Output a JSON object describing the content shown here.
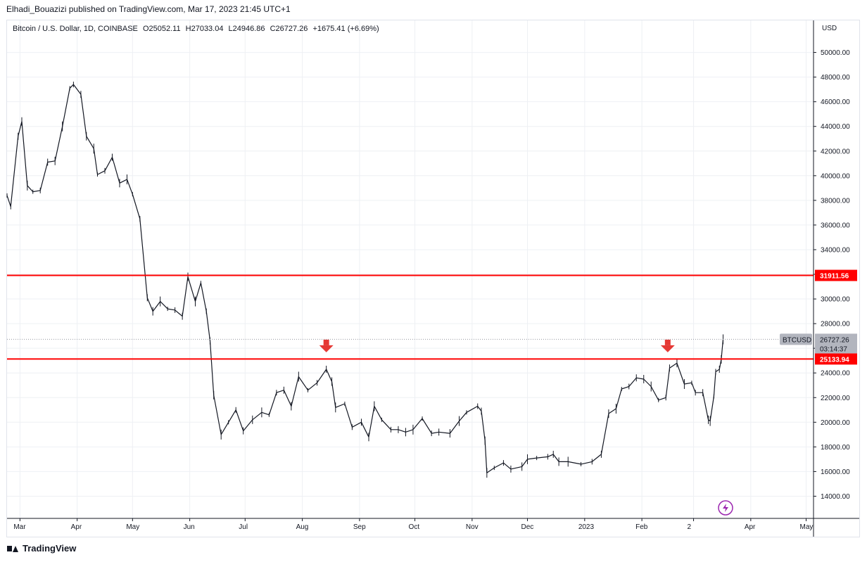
{
  "header": {
    "publisher_text": "Elhadi_Bouazizi published on TradingView.com, Mar 17, 2023 21:45 UTC+1"
  },
  "legend": {
    "symbol": "Bitcoin / U.S. Dollar, 1D, COINBASE",
    "open": "O25052.11",
    "high": "H27033.04",
    "low": "L24946.86",
    "close": "C26727.26",
    "change": "+1675.41 (+6.69%)"
  },
  "footer": {
    "brand": "TradingView"
  },
  "colors": {
    "candle": "#131722",
    "level_line": "#ff0000",
    "arrow": "#e53935",
    "grid": "#eef0f4",
    "axis_label_bg": "#b2b5be",
    "level_label_bg": "#ff0000"
  },
  "chart_data": {
    "type": "line",
    "title": "Bitcoin / U.S. Dollar, 1D, COINBASE",
    "xlabel": "",
    "ylabel": "USD",
    "currency_label": "USD",
    "ylim": [
      12200,
      52600
    ],
    "yticks": [
      "14000.00",
      "16000.00",
      "18000.00",
      "20000.00",
      "22000.00",
      "24000.00",
      "26000.00",
      "28000.00",
      "30000.00",
      "32000.00",
      "34000.00",
      "36000.00",
      "38000.00",
      "40000.00",
      "42000.00",
      "44000.00",
      "46000.00",
      "48000.00",
      "50000.00"
    ],
    "xticks": [
      {
        "label": "Mar",
        "date": "2022-03-01"
      },
      {
        "label": "Apr",
        "date": "2022-04-01"
      },
      {
        "label": "May",
        "date": "2022-05-01"
      },
      {
        "label": "Jun",
        "date": "2022-06-01"
      },
      {
        "label": "Jul",
        "date": "2022-07-01"
      },
      {
        "label": "Aug",
        "date": "2022-08-01"
      },
      {
        "label": "Sep",
        "date": "2022-09-01"
      },
      {
        "label": "Oct",
        "date": "2022-10-01"
      },
      {
        "label": "Nov",
        "date": "2022-11-01"
      },
      {
        "label": "Dec",
        "date": "2022-12-01"
      },
      {
        "label": "2023",
        "date": "2023-01-01"
      },
      {
        "label": "Feb",
        "date": "2023-02-01"
      },
      {
        "label": "2",
        "date": "2023-03-01"
      },
      {
        "label": "Apr",
        "date": "2023-04-01"
      },
      {
        "label": "May",
        "date": "2023-05-01"
      }
    ],
    "x_range": [
      "2022-02-22",
      "2023-05-05"
    ],
    "series": [
      {
        "points": [
          [
            "2022-02-22",
            38400
          ],
          [
            "2022-02-24",
            37500
          ],
          [
            "2022-02-28",
            43200
          ],
          [
            "2022-03-02",
            44400
          ],
          [
            "2022-03-05",
            39200
          ],
          [
            "2022-03-08",
            38700
          ],
          [
            "2022-03-12",
            38800
          ],
          [
            "2022-03-16",
            41100
          ],
          [
            "2022-03-20",
            41200
          ],
          [
            "2022-03-24",
            44000
          ],
          [
            "2022-03-28",
            47100
          ],
          [
            "2022-03-30",
            47400
          ],
          [
            "2022-04-03",
            46600
          ],
          [
            "2022-04-06",
            43200
          ],
          [
            "2022-04-10",
            42200
          ],
          [
            "2022-04-12",
            40100
          ],
          [
            "2022-04-16",
            40400
          ],
          [
            "2022-04-20",
            41500
          ],
          [
            "2022-04-24",
            39400
          ],
          [
            "2022-04-28",
            39700
          ],
          [
            "2022-05-01",
            38500
          ],
          [
            "2022-05-05",
            36500
          ],
          [
            "2022-05-09",
            30100
          ],
          [
            "2022-05-12",
            29000
          ],
          [
            "2022-05-16",
            29800
          ],
          [
            "2022-05-20",
            29200
          ],
          [
            "2022-05-24",
            29100
          ],
          [
            "2022-05-28",
            28600
          ],
          [
            "2022-05-31",
            31800
          ],
          [
            "2022-06-04",
            29800
          ],
          [
            "2022-06-07",
            31300
          ],
          [
            "2022-06-10",
            29000
          ],
          [
            "2022-06-12",
            26600
          ],
          [
            "2022-06-14",
            22200
          ],
          [
            "2022-06-18",
            19000
          ],
          [
            "2022-06-22",
            20000
          ],
          [
            "2022-06-26",
            21000
          ],
          [
            "2022-06-30",
            19300
          ],
          [
            "2022-07-05",
            20200
          ],
          [
            "2022-07-10",
            20800
          ],
          [
            "2022-07-14",
            20600
          ],
          [
            "2022-07-18",
            22400
          ],
          [
            "2022-07-22",
            22600
          ],
          [
            "2022-07-26",
            21300
          ],
          [
            "2022-07-30",
            23700
          ],
          [
            "2022-08-04",
            22600
          ],
          [
            "2022-08-09",
            23200
          ],
          [
            "2022-08-14",
            24300
          ],
          [
            "2022-08-17",
            23300
          ],
          [
            "2022-08-19",
            21200
          ],
          [
            "2022-08-24",
            21500
          ],
          [
            "2022-08-28",
            19600
          ],
          [
            "2022-09-02",
            20000
          ],
          [
            "2022-09-06",
            18800
          ],
          [
            "2022-09-09",
            21300
          ],
          [
            "2022-09-13",
            20200
          ],
          [
            "2022-09-18",
            19400
          ],
          [
            "2022-09-22",
            19400
          ],
          [
            "2022-09-26",
            19200
          ],
          [
            "2022-09-30",
            19400
          ],
          [
            "2022-10-05",
            20300
          ],
          [
            "2022-10-10",
            19100
          ],
          [
            "2022-10-14",
            19200
          ],
          [
            "2022-10-20",
            19100
          ],
          [
            "2022-10-25",
            20100
          ],
          [
            "2022-10-29",
            20800
          ],
          [
            "2022-11-04",
            21300
          ],
          [
            "2022-11-06",
            20900
          ],
          [
            "2022-11-08",
            18500
          ],
          [
            "2022-11-09",
            15900
          ],
          [
            "2022-11-13",
            16300
          ],
          [
            "2022-11-18",
            16700
          ],
          [
            "2022-11-22",
            16200
          ],
          [
            "2022-11-28",
            16400
          ],
          [
            "2022-12-01",
            17000
          ],
          [
            "2022-12-06",
            17100
          ],
          [
            "2022-12-12",
            17200
          ],
          [
            "2022-12-15",
            17400
          ],
          [
            "2022-12-18",
            16800
          ],
          [
            "2022-12-23",
            16800
          ],
          [
            "2022-12-30",
            16600
          ],
          [
            "2023-01-05",
            16800
          ],
          [
            "2023-01-10",
            17400
          ],
          [
            "2023-01-14",
            20700
          ],
          [
            "2023-01-18",
            21100
          ],
          [
            "2023-01-21",
            22700
          ],
          [
            "2023-01-25",
            22900
          ],
          [
            "2023-01-29",
            23600
          ],
          [
            "2023-02-02",
            23500
          ],
          [
            "2023-02-06",
            22900
          ],
          [
            "2023-02-10",
            21800
          ],
          [
            "2023-02-14",
            22000
          ],
          [
            "2023-02-16",
            24400
          ],
          [
            "2023-02-20",
            24800
          ],
          [
            "2023-02-24",
            23100
          ],
          [
            "2023-02-28",
            23200
          ],
          [
            "2023-03-02",
            22400
          ],
          [
            "2023-03-06",
            22400
          ],
          [
            "2023-03-09",
            20200
          ],
          [
            "2023-03-10",
            20100
          ],
          [
            "2023-03-12",
            22100
          ],
          [
            "2023-03-13",
            24100
          ],
          [
            "2023-03-15",
            24300
          ],
          [
            "2023-03-16",
            25100
          ],
          [
            "2023-03-17",
            26727.26
          ]
        ]
      }
    ],
    "levels": [
      {
        "value": 31911.56,
        "label": "31911.56"
      },
      {
        "value": 25133.94,
        "label": "25133.94"
      }
    ],
    "last_price": {
      "symbol": "BTCUSD",
      "value": 26727.26,
      "label": "26727.26",
      "countdown": "03:14:37"
    },
    "annotations": [
      {
        "type": "arrow-down",
        "date": "2022-08-14",
        "value": 25900
      },
      {
        "type": "arrow-down",
        "date": "2023-02-15",
        "value": 25900
      }
    ],
    "grid": true
  }
}
